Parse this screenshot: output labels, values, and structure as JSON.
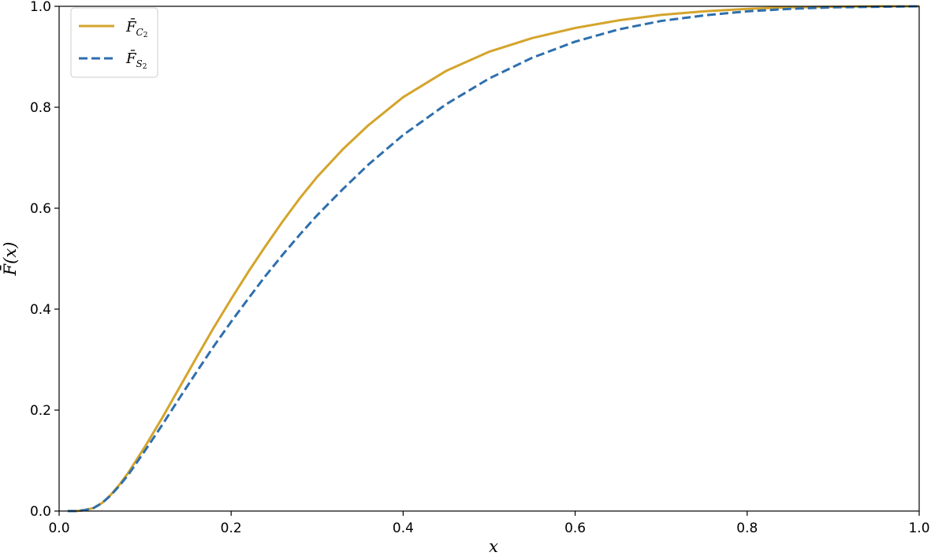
{
  "chart_data": {
    "type": "line",
    "xlabel": "x",
    "ylabel": "F̄(x)",
    "xlim": [
      0.0,
      1.0
    ],
    "ylim": [
      0.0,
      1.0
    ],
    "xticks": [
      "0.0",
      "0.2",
      "0.4",
      "0.6",
      "0.8",
      "1.0"
    ],
    "yticks": [
      "0.0",
      "0.2",
      "0.4",
      "0.6",
      "0.8",
      "1.0"
    ],
    "grid": false,
    "legend_position": "top-left",
    "x": [
      0.01,
      0.02,
      0.03,
      0.04,
      0.05,
      0.06,
      0.07,
      0.08,
      0.1,
      0.12,
      0.14,
      0.16,
      0.18,
      0.2,
      0.22,
      0.24,
      0.26,
      0.28,
      0.3,
      0.33,
      0.36,
      0.4,
      0.45,
      0.5,
      0.55,
      0.6,
      0.65,
      0.7,
      0.75,
      0.8,
      0.85,
      0.9,
      0.95,
      1.0
    ],
    "series": [
      {
        "legend": {
          "main": "F̄",
          "sub": "C",
          "subsub": "2"
        },
        "color": "#d4a52c",
        "style": "solid",
        "values": [
          0.0,
          0.0,
          0.002,
          0.006,
          0.016,
          0.032,
          0.052,
          0.075,
          0.128,
          0.185,
          0.245,
          0.305,
          0.364,
          0.42,
          0.474,
          0.525,
          0.574,
          0.62,
          0.662,
          0.717,
          0.765,
          0.82,
          0.872,
          0.91,
          0.937,
          0.957,
          0.972,
          0.983,
          0.99,
          0.995,
          0.998,
          0.999,
          1.0,
          1.0
        ]
      },
      {
        "legend": {
          "main": "F̄",
          "sub": "S",
          "subsub": "2"
        },
        "color": "#2e6fad",
        "style": "dashed",
        "values": [
          0.0,
          0.0,
          0.002,
          0.006,
          0.016,
          0.031,
          0.05,
          0.071,
          0.12,
          0.171,
          0.224,
          0.276,
          0.327,
          0.375,
          0.421,
          0.466,
          0.508,
          0.548,
          0.586,
          0.638,
          0.687,
          0.745,
          0.806,
          0.857,
          0.898,
          0.93,
          0.954,
          0.971,
          0.982,
          0.99,
          0.995,
          0.998,
          0.999,
          1.0
        ]
      }
    ]
  }
}
